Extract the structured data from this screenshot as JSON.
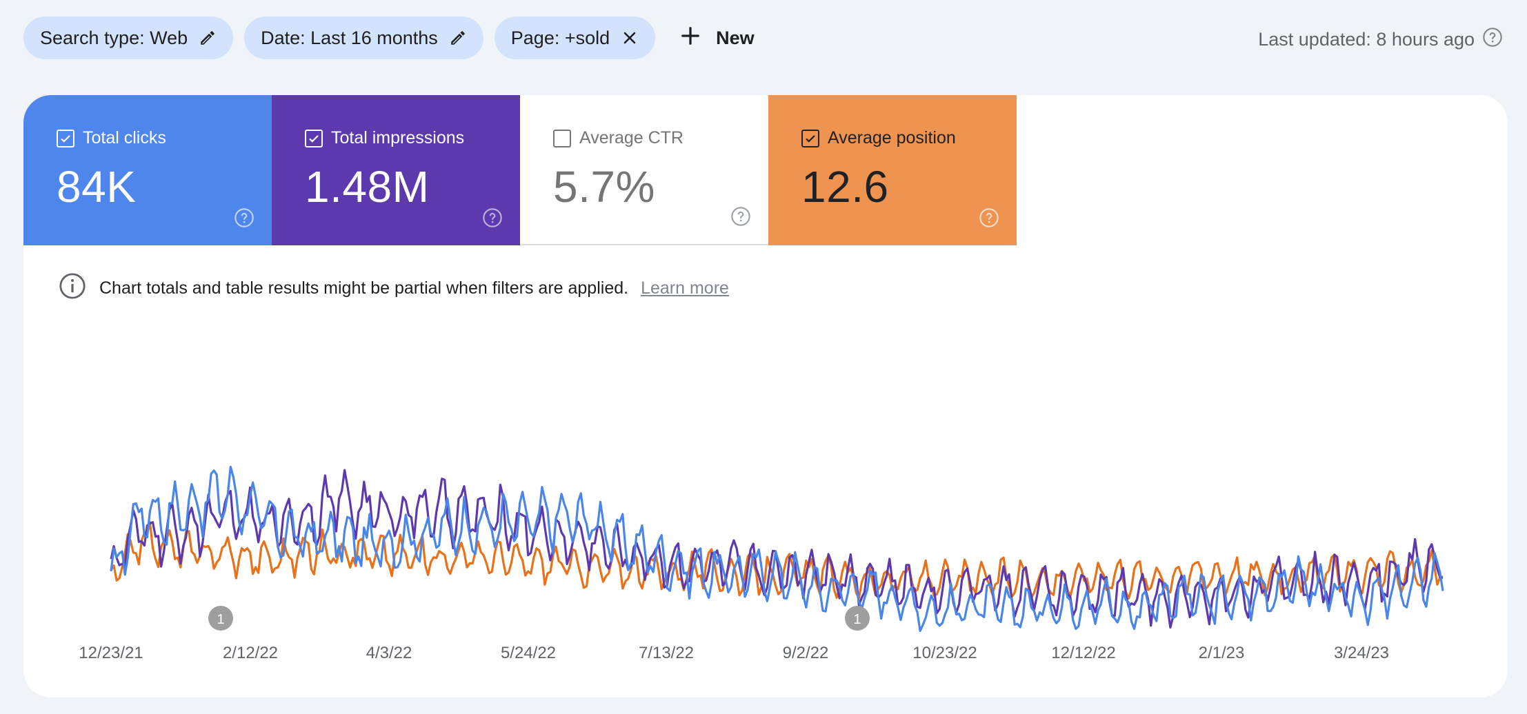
{
  "filters": {
    "chips": [
      {
        "label": "Search type: Web",
        "icon": "pencil-icon"
      },
      {
        "label": "Date: Last 16 months",
        "icon": "pencil-icon"
      },
      {
        "label": "Page: +sold",
        "icon": "close-icon"
      }
    ],
    "new_label": "New"
  },
  "last_updated": "Last updated: 8 hours ago",
  "metrics": {
    "clicks": {
      "label": "Total clicks",
      "value": "84K",
      "checked": true,
      "color": "#4f86ec"
    },
    "impressions": {
      "label": "Total impressions",
      "value": "1.48M",
      "checked": true,
      "color": "#5c3aae"
    },
    "ctr": {
      "label": "Average CTR",
      "value": "5.7%",
      "checked": false
    },
    "position": {
      "label": "Average position",
      "value": "12.6",
      "checked": true,
      "color": "#ee9450"
    }
  },
  "notice": {
    "text": "Chart totals and table results might be partial when filters are applied.",
    "link": "Learn more"
  },
  "chart_data": {
    "type": "line",
    "x_ticks": [
      "12/23/21",
      "2/12/22",
      "4/3/22",
      "5/24/22",
      "7/13/22",
      "9/2/22",
      "10/23/22",
      "12/12/22",
      "2/1/23",
      "3/24/23"
    ],
    "annotations": [
      {
        "date": "2/1/22",
        "label": "1"
      },
      {
        "date": "9/3/22",
        "label": "1"
      }
    ],
    "series": [
      {
        "name": "Total clicks",
        "color": "#4a86e8",
        "values": [
          0.4,
          0.66,
          0.64,
          0.68,
          0.73,
          0.66,
          0.58,
          0.55,
          0.56,
          0.53,
          0.54,
          0.56,
          0.6,
          0.6,
          0.61,
          0.62,
          0.63,
          0.62,
          0.54,
          0.5,
          0.45,
          0.43,
          0.42,
          0.43,
          0.41,
          0.36,
          0.37,
          0.36,
          0.32,
          0.28,
          0.3,
          0.3,
          0.29,
          0.3,
          0.31,
          0.32,
          0.28,
          0.33,
          0.34,
          0.32,
          0.34,
          0.36,
          0.4,
          0.34,
          0.33,
          0.34,
          0.38,
          0.43
        ]
      },
      {
        "name": "Total impressions",
        "color": "#5c3aae",
        "values": [
          0.45,
          0.58,
          0.56,
          0.6,
          0.64,
          0.62,
          0.62,
          0.64,
          0.7,
          0.66,
          0.65,
          0.66,
          0.65,
          0.64,
          0.62,
          0.58,
          0.55,
          0.54,
          0.5,
          0.48,
          0.46,
          0.45,
          0.44,
          0.43,
          0.43,
          0.44,
          0.41,
          0.4,
          0.37,
          0.36,
          0.38,
          0.37,
          0.36,
          0.36,
          0.34,
          0.35,
          0.35,
          0.32,
          0.33,
          0.34,
          0.36,
          0.38,
          0.41,
          0.39,
          0.4,
          0.41,
          0.45,
          0.46
        ]
      },
      {
        "name": "Average position",
        "color": "#e8711a",
        "values": [
          0.4,
          0.55,
          0.52,
          0.5,
          0.5,
          0.48,
          0.48,
          0.5,
          0.51,
          0.5,
          0.49,
          0.49,
          0.48,
          0.49,
          0.47,
          0.46,
          0.46,
          0.44,
          0.44,
          0.43,
          0.43,
          0.44,
          0.42,
          0.42,
          0.42,
          0.42,
          0.4,
          0.4,
          0.4,
          0.4,
          0.4,
          0.4,
          0.41,
          0.4,
          0.4,
          0.42,
          0.41,
          0.41,
          0.42,
          0.42,
          0.42,
          0.41,
          0.42,
          0.42,
          0.43,
          0.43,
          0.43,
          0.45
        ]
      }
    ]
  }
}
